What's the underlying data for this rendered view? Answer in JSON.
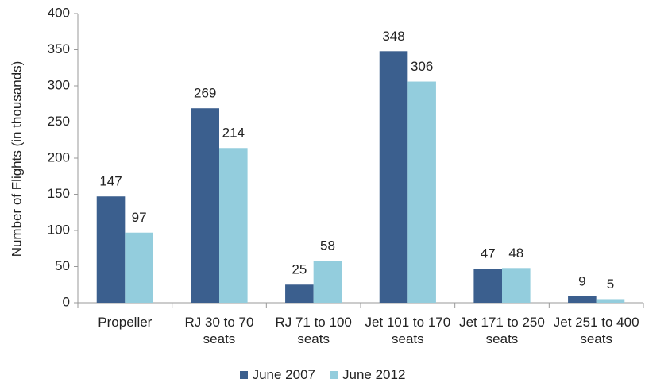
{
  "chart_data": {
    "type": "bar",
    "y_label": "Number of Flights (in thousands)",
    "categories": [
      "Propeller",
      "RJ 30 to 70 seats",
      "RJ 71 to 100 seats",
      "Jet 101 to 170 seats",
      "Jet 171 to 250 seats",
      "Jet 251 to 400 seats"
    ],
    "series": [
      {
        "name": "June 2007",
        "color": "#3b5f8e",
        "values": [
          147,
          269,
          25,
          348,
          47,
          9
        ]
      },
      {
        "name": "June 2012",
        "color": "#93cddd",
        "values": [
          97,
          214,
          58,
          306,
          48,
          5
        ]
      }
    ],
    "ylim": [
      0,
      400
    ],
    "yticks": [
      0,
      50,
      100,
      150,
      200,
      250,
      300,
      350,
      400
    ],
    "grid": false,
    "legend": "bottom"
  }
}
